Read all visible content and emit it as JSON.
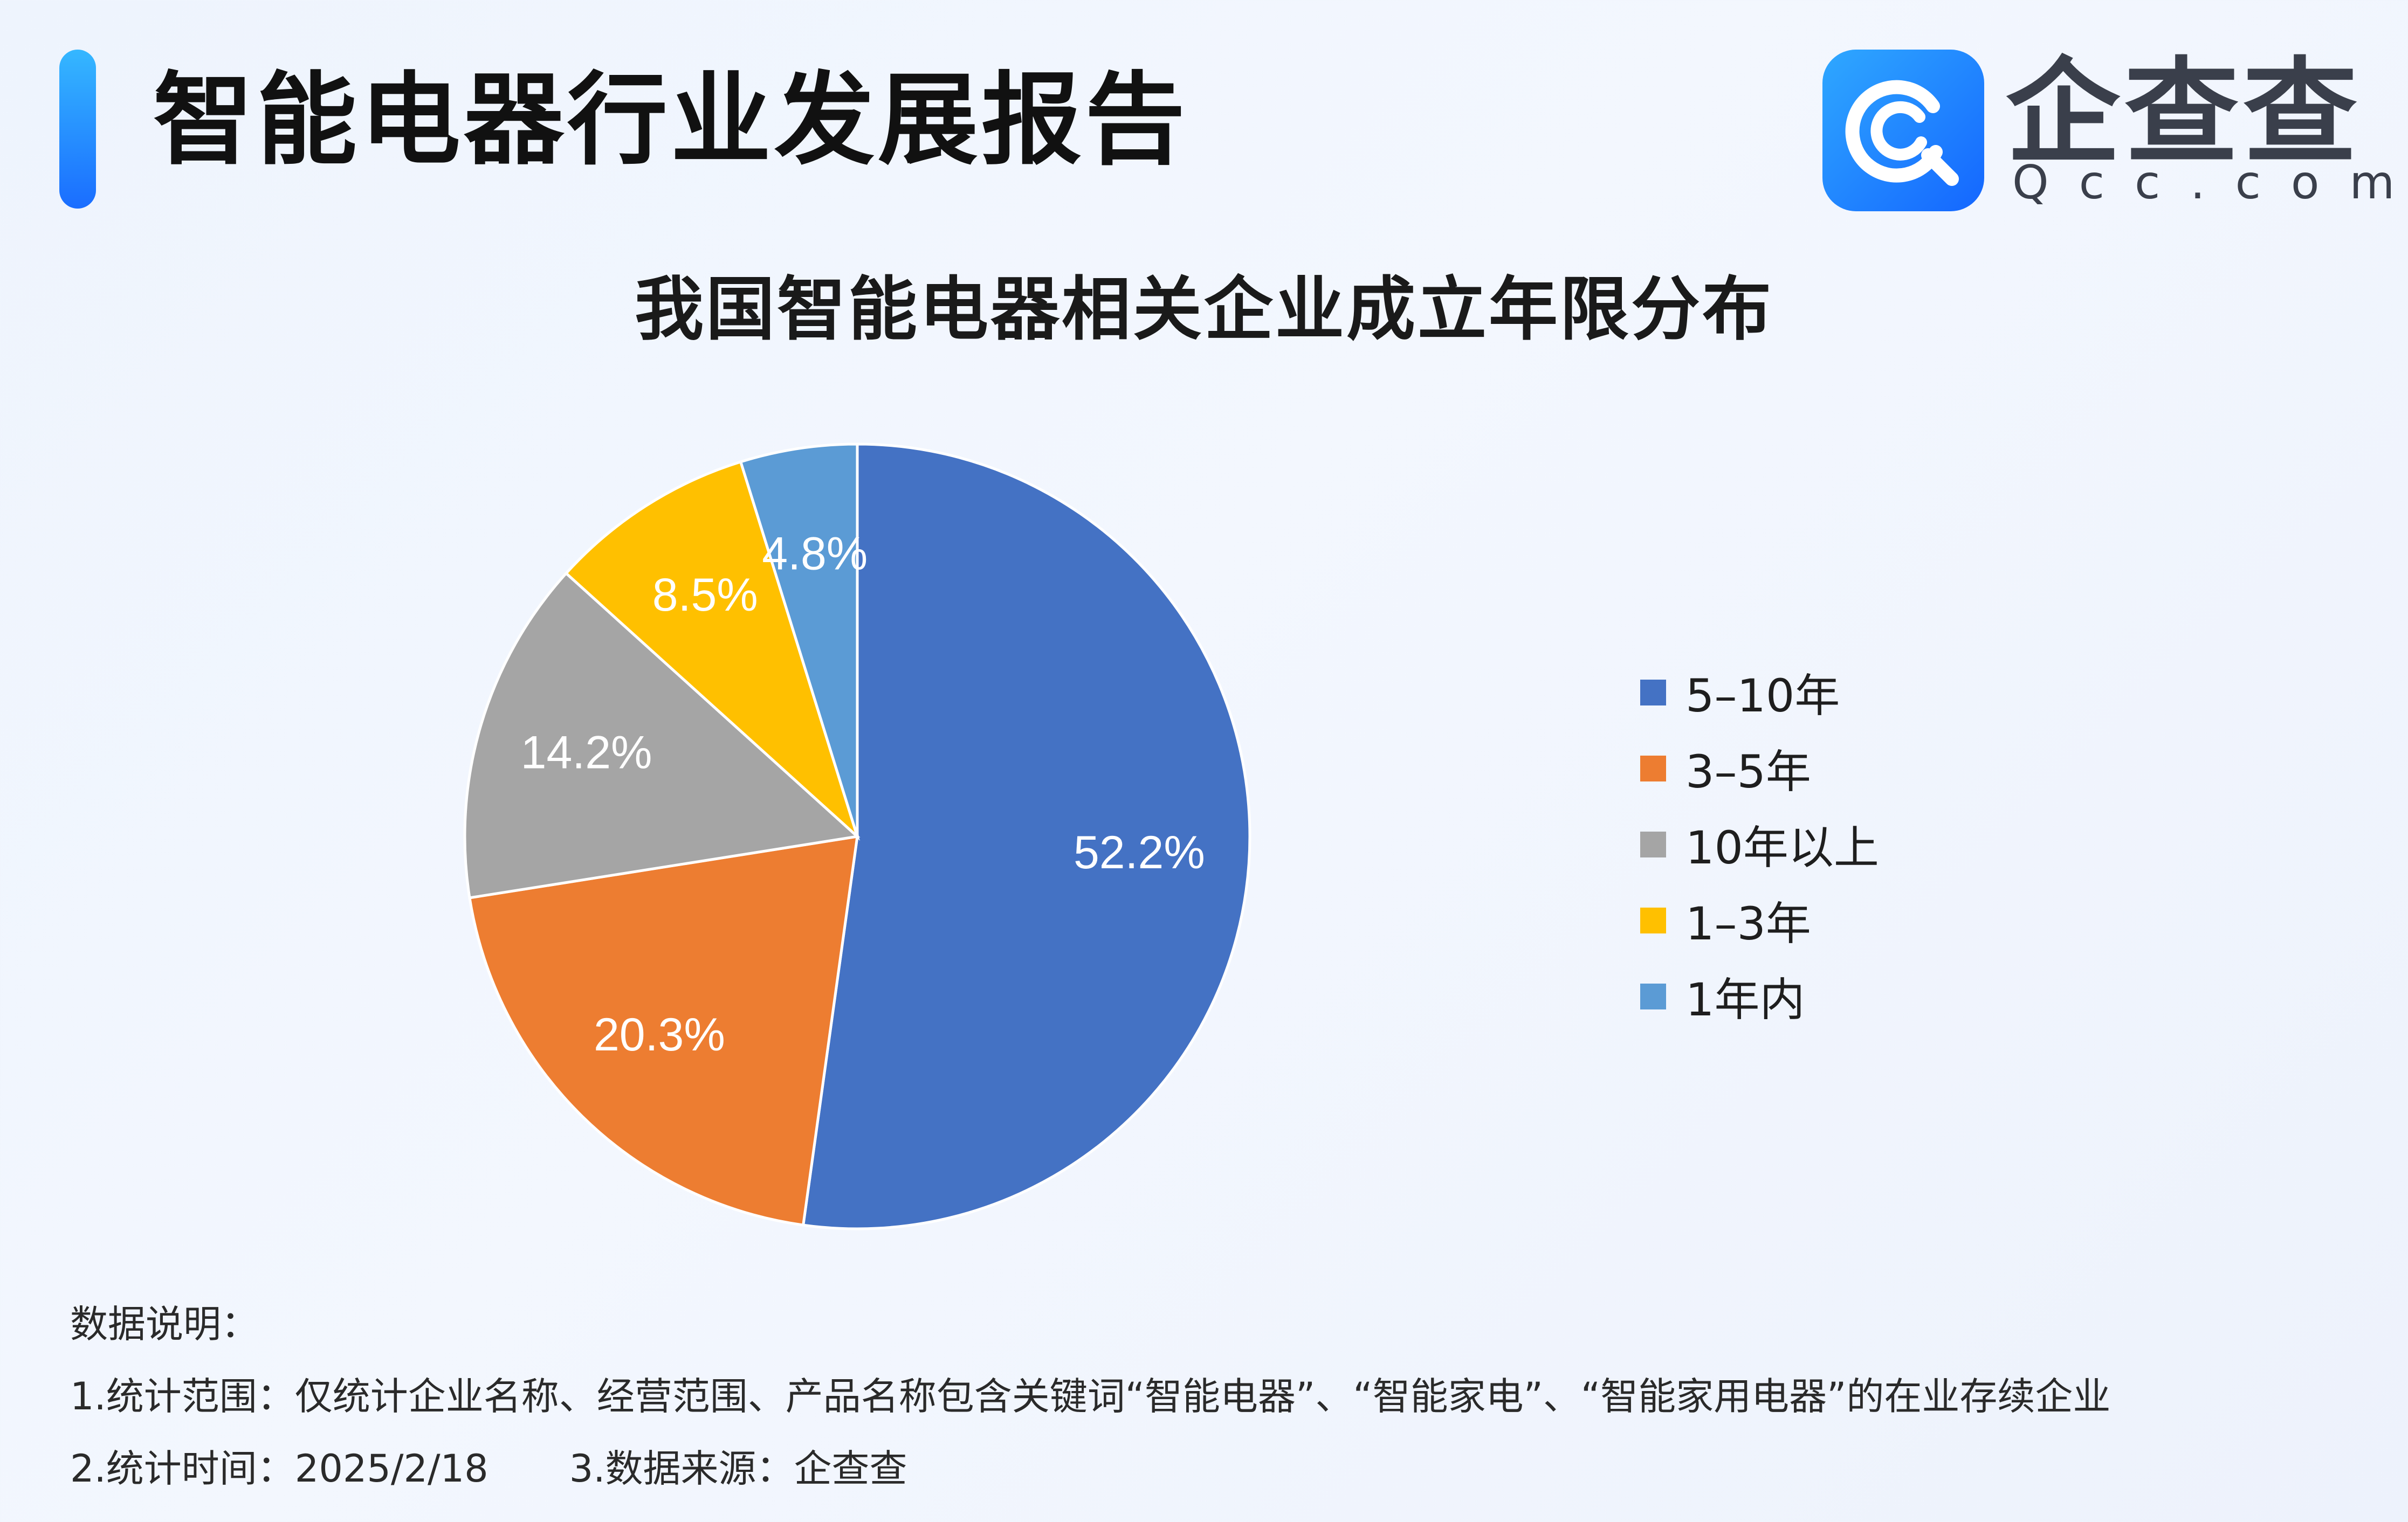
{
  "header": {
    "report_title": "智能电器行业发展报告",
    "logo": {
      "cn": "企查查",
      "en": "Qcc.com",
      "brand_color": "#1f7cff"
    }
  },
  "chart_data": {
    "type": "pie",
    "title": "我国智能电器相关企业成立年限分布",
    "slices": [
      {
        "name": "5–10年",
        "value": 52.2,
        "label": "52.2%",
        "color": "#4472c4"
      },
      {
        "name": "3–5年",
        "value": 20.3,
        "label": "20.3%",
        "color": "#ed7d31"
      },
      {
        "name": "10年以上",
        "value": 14.2,
        "label": "14.2%",
        "color": "#a5a5a5"
      },
      {
        "name": "1–3年",
        "value": 8.5,
        "label": "8.5%",
        "color": "#ffc000"
      },
      {
        "name": "1年内",
        "value": 4.8,
        "label": "4.8%",
        "color": "#5b9bd5"
      }
    ],
    "legend_placement": "right"
  },
  "notes": {
    "heading": "数据说明：",
    "scope": "1.统计范围：仅统计企业名称、经营范围、产品名称包含关键词“智能电器”、“智能家电”、“智能家用电器”的在业存续企业",
    "time": "2.统计时间：2025/2/18",
    "source": "3.数据来源：企查查"
  }
}
